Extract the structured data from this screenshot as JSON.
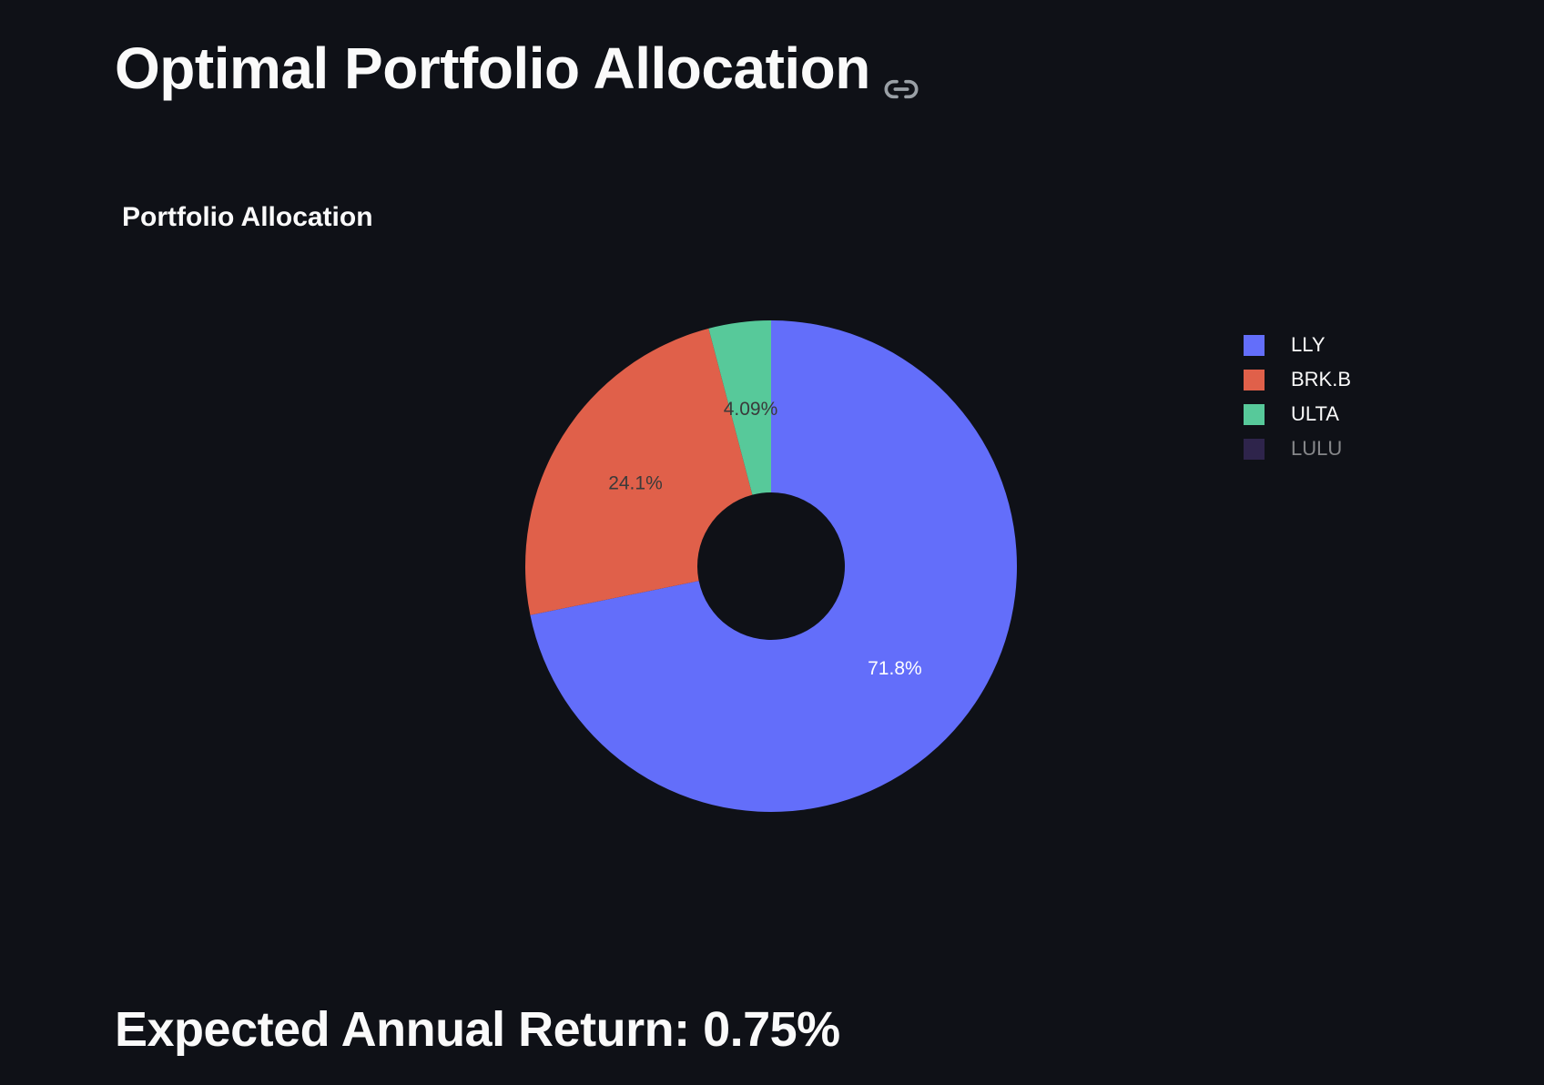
{
  "page": {
    "title": "Optimal Portfolio Allocation",
    "anchor_icon": "link-icon",
    "metric_text": "Expected Annual Return: 0.75%"
  },
  "colors": {
    "background": "#0f1117",
    "text": "#fafafa",
    "LLY": "#636efa",
    "BRK.B": "#ef553b",
    "ULTA": "#00cc96",
    "LULU": "#ab63fa"
  },
  "chart_data": {
    "type": "pie",
    "hole": 0.3,
    "title": "Portfolio Allocation",
    "labels": [
      "LLY",
      "BRK.B",
      "ULTA",
      "LULU"
    ],
    "values": [
      71.8,
      24.1,
      4.09,
      0.0
    ],
    "text_labels": [
      "71.8%",
      "24.1%",
      "4.09%",
      ""
    ],
    "colors": [
      "#636efa",
      "#e0604a",
      "#57c99a",
      "#553b8c"
    ],
    "legend": {
      "placement": "right",
      "items": [
        {
          "label": "LLY",
          "color": "#636efa",
          "faded": false
        },
        {
          "label": "BRK.B",
          "color": "#e0604a",
          "faded": false
        },
        {
          "label": "ULTA",
          "color": "#57c99a",
          "faded": false
        },
        {
          "label": "LULU",
          "color": "#553b8c",
          "faded": true
        }
      ]
    }
  }
}
